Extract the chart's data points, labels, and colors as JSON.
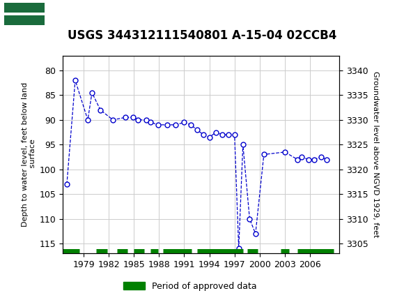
{
  "title": "USGS 344312111540801 A-15-04 02CCB4",
  "header_bg": "#1a6b3c",
  "ylabel_left": "Depth to water level, feet below land\n surface",
  "ylabel_right": "Groundwater level above NGVD 1929, feet",
  "ylim_left": [
    117,
    77
  ],
  "ylim_right": [
    3303,
    3343
  ],
  "yticks_left": [
    80,
    85,
    90,
    95,
    100,
    105,
    110,
    115
  ],
  "yticks_right": [
    3340,
    3335,
    3330,
    3325,
    3320,
    3315,
    3310,
    3305
  ],
  "xlim": [
    1976.5,
    2009.5
  ],
  "xticks": [
    1979,
    1982,
    1985,
    1988,
    1991,
    1994,
    1997,
    2000,
    2003,
    2006
  ],
  "data_x": [
    1977.0,
    1978.0,
    1979.5,
    1980.0,
    1981.0,
    1982.5,
    1984.0,
    1984.9,
    1985.5,
    1986.5,
    1987.0,
    1987.9,
    1989.0,
    1990.0,
    1991.0,
    1991.8,
    1992.5,
    1993.3,
    1994.0,
    1994.8,
    1995.5,
    1996.3,
    1997.0,
    1997.5,
    1998.0,
    1998.8,
    1999.5,
    2000.5,
    2003.0,
    2004.5,
    2005.0,
    2005.8,
    2006.5,
    2007.3,
    2008.0
  ],
  "data_y": [
    103.0,
    82.0,
    90.0,
    84.5,
    88.0,
    90.0,
    89.5,
    89.5,
    90.0,
    90.0,
    90.5,
    91.0,
    91.0,
    91.0,
    90.5,
    91.0,
    92.0,
    93.0,
    93.5,
    92.5,
    93.0,
    93.0,
    93.0,
    116.0,
    95.0,
    110.0,
    113.0,
    97.0,
    96.5,
    98.0,
    97.5,
    98.0,
    98.0,
    97.5,
    98.0
  ],
  "line_color": "#0000cc",
  "marker_color": "#0000cc",
  "marker_face": "white",
  "approved_segments": [
    [
      1976.5,
      1978.5
    ],
    [
      1980.5,
      1981.8
    ],
    [
      1983.0,
      1984.2
    ],
    [
      1985.0,
      1986.2
    ],
    [
      1987.0,
      1987.9
    ],
    [
      1988.5,
      1991.9
    ],
    [
      1992.5,
      1998.0
    ],
    [
      1998.5,
      1999.8
    ],
    [
      2002.5,
      2003.5
    ],
    [
      2004.5,
      2008.8
    ]
  ],
  "approved_color": "#008000",
  "approved_y": 116.5,
  "legend_label": "Period of approved data",
  "background_color": "#ffffff",
  "grid_color": "#cccccc",
  "title_fontsize": 12,
  "tick_fontsize": 9,
  "ylabel_fontsize": 8
}
